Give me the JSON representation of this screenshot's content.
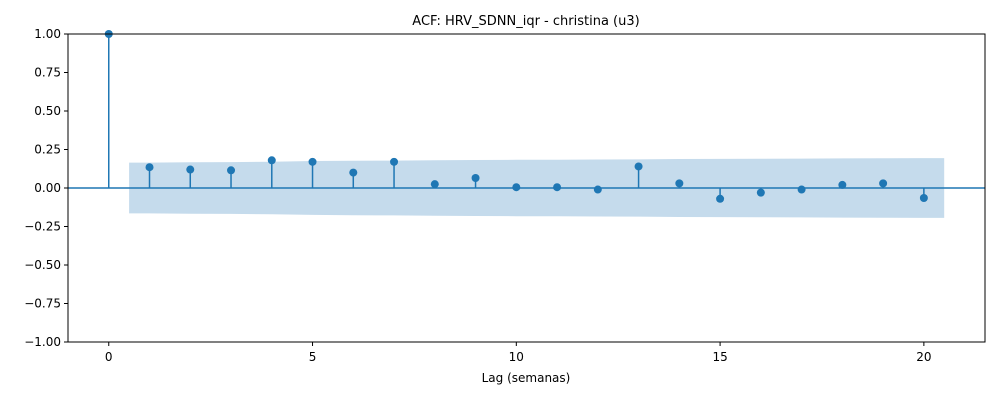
{
  "chart_data": {
    "type": "stem",
    "title": "ACF: HRV_SDNN_iqr - christina (u3)",
    "xlabel": "Lag (semanas)",
    "ylabel": "",
    "xlim": [
      -1,
      21.5
    ],
    "ylim": [
      -1.0,
      1.0
    ],
    "x_ticks": [
      0,
      5,
      10,
      15,
      20
    ],
    "y_ticks": [
      -1.0,
      -0.75,
      -0.5,
      -0.25,
      0.0,
      0.25,
      0.5,
      0.75,
      1.0
    ],
    "y_tick_labels": [
      "−1.00",
      "−0.75",
      "−0.50",
      "−0.25",
      "0.00",
      "0.25",
      "0.50",
      "0.75",
      "1.00"
    ],
    "lags": [
      0,
      1,
      2,
      3,
      4,
      5,
      6,
      7,
      8,
      9,
      10,
      11,
      12,
      13,
      14,
      15,
      16,
      17,
      18,
      19,
      20
    ],
    "values": [
      1.0,
      0.135,
      0.12,
      0.115,
      0.18,
      0.17,
      0.1,
      0.17,
      0.025,
      0.065,
      0.005,
      0.005,
      -0.01,
      0.14,
      0.03,
      -0.07,
      -0.03,
      -0.01,
      0.02,
      0.03,
      -0.065
    ],
    "confidence_band": {
      "x": [
        0.5,
        1,
        2,
        3,
        4,
        5,
        6,
        7,
        8,
        9,
        10,
        11,
        12,
        13,
        14,
        15,
        16,
        17,
        18,
        19,
        20,
        20.5
      ],
      "upper": [
        0.165,
        0.165,
        0.167,
        0.168,
        0.17,
        0.175,
        0.177,
        0.178,
        0.18,
        0.182,
        0.183,
        0.184,
        0.185,
        0.186,
        0.188,
        0.189,
        0.19,
        0.191,
        0.192,
        0.193,
        0.194,
        0.194
      ]
    },
    "colors": {
      "stem": "#1f77b4",
      "band": "#c5dbec",
      "zero_line": "#1f77b4"
    },
    "grid": false,
    "legend": "none"
  }
}
